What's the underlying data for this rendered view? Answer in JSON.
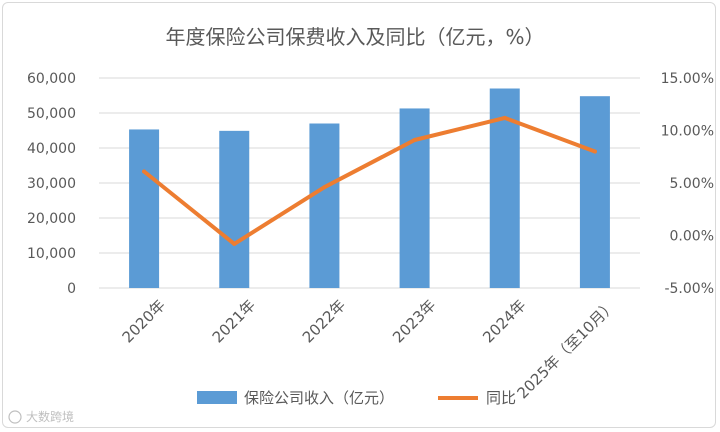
{
  "chart_data": {
    "type": "bar",
    "title": "年度保险公司保费收入及同比（亿元，%）",
    "categories": [
      "2020年",
      "2021年",
      "2022年",
      "2023年",
      "2024年",
      "2025年（至10月）"
    ],
    "series": [
      {
        "name": "保险公司收入（亿元）",
        "type": "bar",
        "axis": "left",
        "color": "#5b9bd5",
        "values": [
          45300,
          44900,
          47000,
          51300,
          57000,
          54800
        ]
      },
      {
        "name": "同比",
        "type": "line",
        "axis": "right",
        "color": "#ed7d31",
        "values": [
          6.1,
          -0.8,
          4.6,
          9.1,
          11.2,
          8.0
        ]
      }
    ],
    "y_left": {
      "ylim": [
        0,
        60000
      ],
      "ticks": [
        "60,000",
        "50,000",
        "40,000",
        "30,000",
        "20,000",
        "10,000",
        "0"
      ]
    },
    "y_right": {
      "ylim": [
        -5,
        15
      ],
      "ticks": [
        "15.00%",
        "10.00%",
        "5.00%",
        "0.00%",
        "-5.00%"
      ]
    },
    "grid": true,
    "legend": "bottom"
  },
  "watermark": "大数跨境"
}
